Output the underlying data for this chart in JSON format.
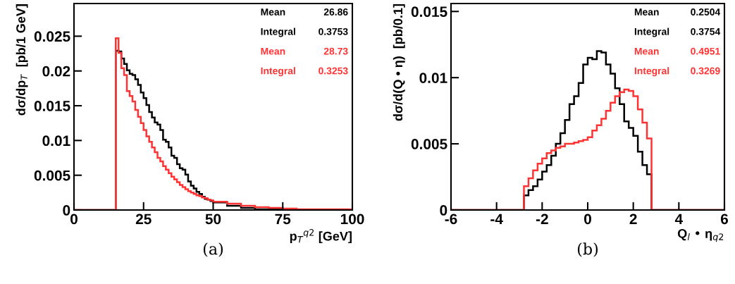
{
  "chart_data": [
    {
      "type": "histogram",
      "xlabel": "p$_{T}$$^{q2}$ [GeV]",
      "ylabel": "dσ/dp$_{T}$  [pb/1 GeV]",
      "annotations": [
        "Mean 26.86",
        "Integral 0.3753",
        "Mean 28.73",
        "Integral 0.3253",
        "(a)"
      ],
      "bins": [
        0,
        15,
        16,
        17,
        18,
        19,
        20,
        21,
        22,
        23,
        24,
        25,
        26,
        27,
        28,
        29,
        30,
        31,
        32,
        33,
        34,
        35,
        36,
        37,
        38,
        39,
        40,
        41,
        42,
        43,
        44,
        45,
        46,
        47,
        48,
        49,
        50,
        55,
        60,
        65,
        70,
        75,
        80,
        90,
        100
      ],
      "series": [
        {
          "color": "#000000",
          "values": [
            0,
            0.0229,
            0.0228,
            0.0218,
            0.021,
            0.0201,
            0.0196,
            0.0194,
            0.0188,
            0.018,
            0.0169,
            0.0161,
            0.0151,
            0.0141,
            0.0133,
            0.0126,
            0.0123,
            0.0115,
            0.0101,
            0.0098,
            0.009,
            0.0078,
            0.0075,
            0.0066,
            0.006,
            0.0058,
            0.0051,
            0.0041,
            0.0035,
            0.0031,
            0.0026,
            0.0023,
            0.0019,
            0.0016,
            0.0015,
            0.0013,
            0.0011,
            0.0006,
            0.0003,
            0.0001,
            0.0001,
            0,
            0,
            0
          ]
        },
        {
          "color": "#ff3333",
          "values": [
            0,
            0.0247,
            0.0226,
            0.0204,
            0.0194,
            0.0171,
            0.0164,
            0.0156,
            0.0144,
            0.0134,
            0.0125,
            0.0115,
            0.0106,
            0.0098,
            0.009,
            0.0083,
            0.0075,
            0.007,
            0.0063,
            0.0058,
            0.0053,
            0.0048,
            0.0044,
            0.004,
            0.0036,
            0.0033,
            0.003,
            0.0027,
            0.0025,
            0.0023,
            0.0021,
            0.002,
            0.0018,
            0.0017,
            0.0015,
            0.0014,
            0.0012,
            0.0009,
            0.0006,
            0.0004,
            0.0003,
            0.0002,
            0.0001,
            0.0001
          ]
        }
      ],
      "xlim": [
        0,
        100
      ],
      "xticks": [
        0,
        25,
        50,
        75,
        100
      ],
      "ylim": [
        0,
        0.0297
      ],
      "yticks": [
        0,
        0.005,
        0.01,
        0.015,
        0.02,
        0.025
      ],
      "grid": false,
      "legend": false
    },
    {
      "type": "histogram",
      "xlabel": "Q$_{l}$ • η$_{q2}$",
      "ylabel": "dσ/d(Q • η)  [pb/0.1]",
      "annotations": [
        "Mean 0.2504",
        "Integral 0.3754",
        "Mean 0.4951",
        "Integral 0.3269",
        "(b)"
      ],
      "bins": [
        -6,
        -2.8,
        -2.6,
        -2.4,
        -2.2,
        -2.0,
        -1.8,
        -1.6,
        -1.4,
        -1.2,
        -1.0,
        -0.8,
        -0.6,
        -0.4,
        -0.2,
        0.0,
        0.2,
        0.4,
        0.6,
        0.8,
        1.0,
        1.2,
        1.4,
        1.6,
        1.8,
        2.0,
        2.2,
        2.4,
        2.6,
        2.8,
        6
      ],
      "series": [
        {
          "color": "#000000",
          "values": [
            0,
            0.0011,
            0.0015,
            0.0018,
            0.0023,
            0.0029,
            0.0034,
            0.0041,
            0.005,
            0.0058,
            0.0068,
            0.008,
            0.0086,
            0.0096,
            0.011,
            0.0115,
            0.0114,
            0.012,
            0.0119,
            0.011,
            0.0103,
            0.0092,
            0.008,
            0.0067,
            0.0062,
            0.0056,
            0.0044,
            0.0034,
            0.0027,
            0
          ]
        },
        {
          "color": "#ff3333",
          "values": [
            0,
            0.0018,
            0.0024,
            0.003,
            0.0035,
            0.0039,
            0.0043,
            0.0045,
            0.0047,
            0.0048,
            0.005,
            0.005,
            0.0051,
            0.0052,
            0.0053,
            0.0055,
            0.006,
            0.0064,
            0.0069,
            0.0075,
            0.0081,
            0.0086,
            0.0089,
            0.0091,
            0.009,
            0.0086,
            0.0076,
            0.0066,
            0.0054,
            0
          ]
        }
      ],
      "xlim": [
        -6,
        6
      ],
      "xticks": [
        -6,
        -4,
        -2,
        0,
        2,
        4,
        6
      ],
      "ylim": [
        0,
        0.0156
      ],
      "yticks": [
        0,
        0.005,
        0.01,
        0.015
      ],
      "grid": false,
      "legend": false
    }
  ]
}
